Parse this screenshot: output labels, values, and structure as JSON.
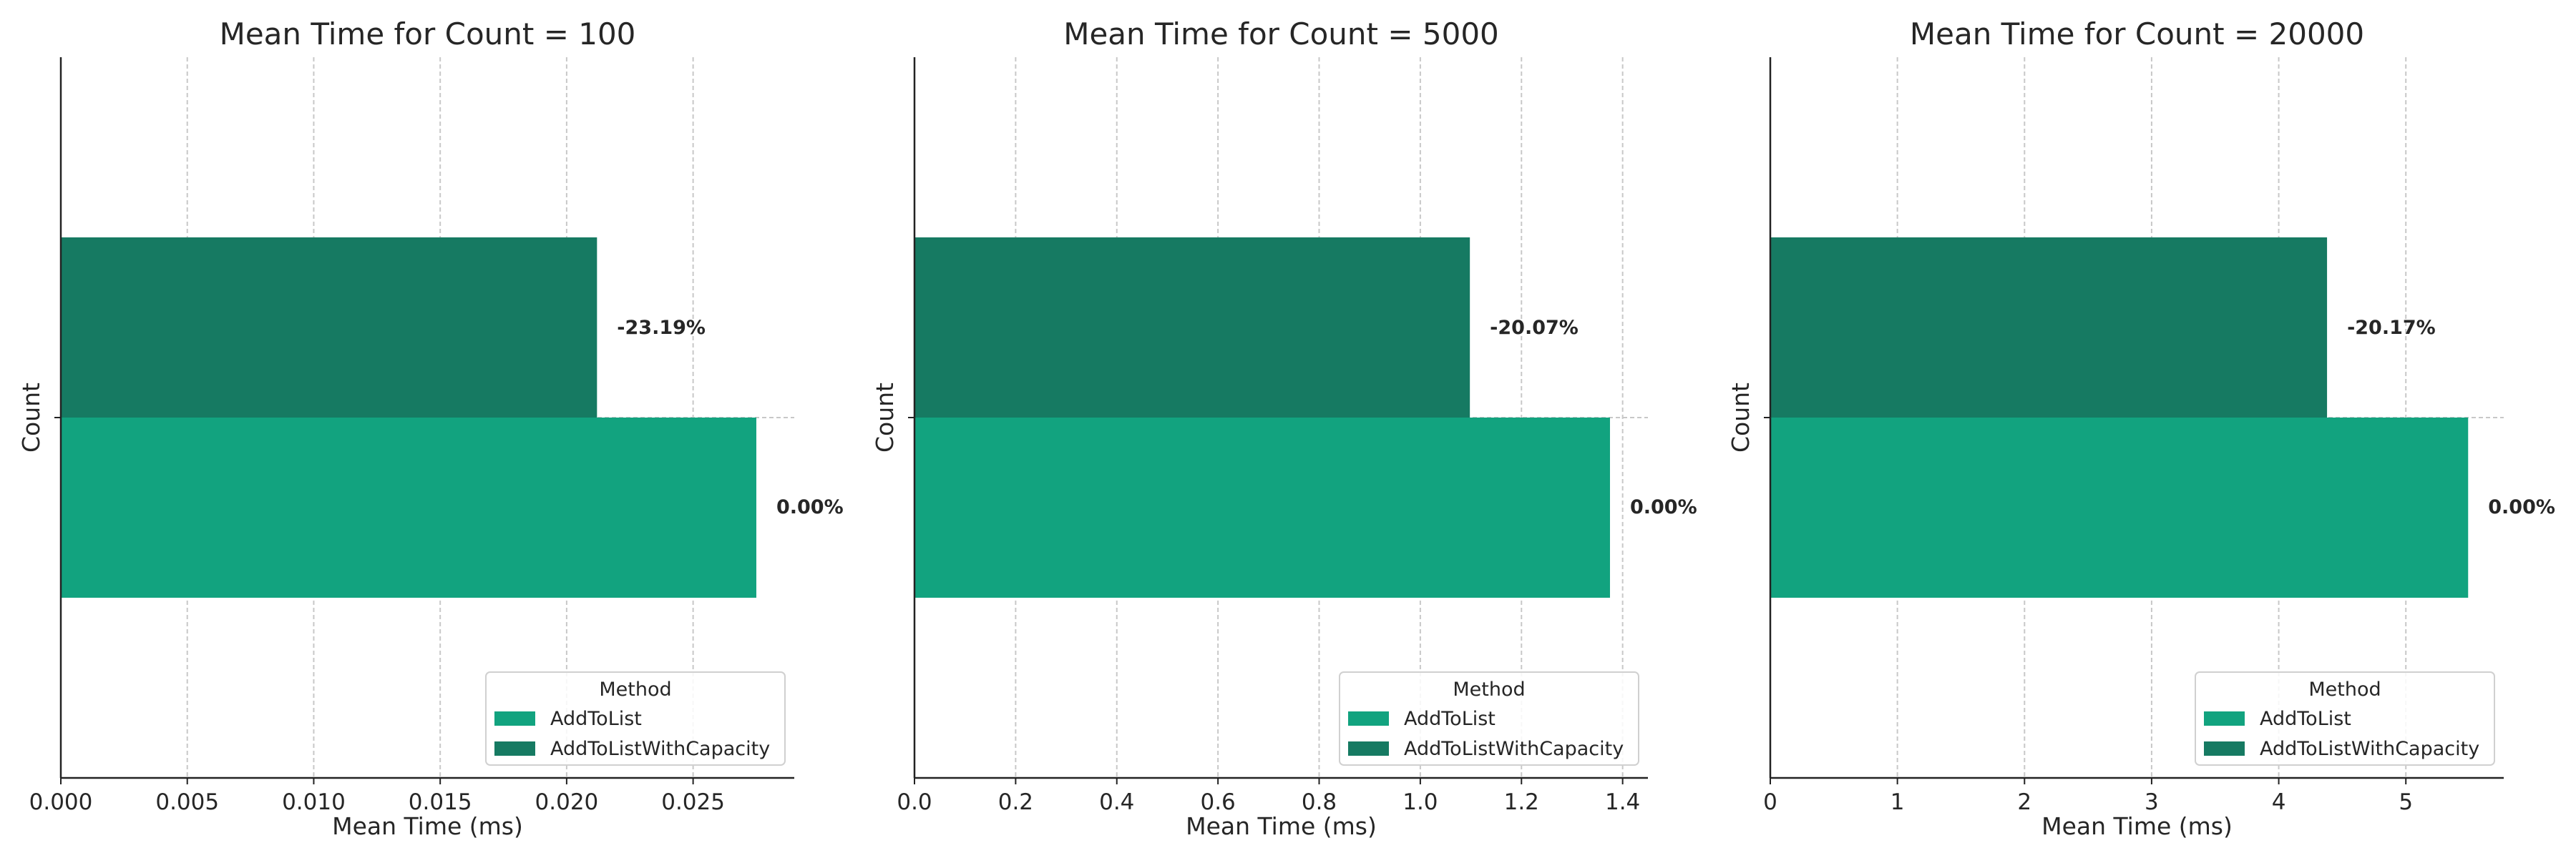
{
  "chart_data": [
    {
      "type": "bar",
      "orientation": "horizontal",
      "title": "Mean Time for Count = 100",
      "xlabel": "Mean Time (ms)",
      "ylabel": "Count",
      "xlim": [
        0,
        0.029
      ],
      "xticks": [
        "0.000",
        "0.005",
        "0.010",
        "0.015",
        "0.020",
        "0.025"
      ],
      "tick_values": [
        0,
        0.005,
        0.01,
        0.015,
        0.02,
        0.025
      ],
      "grid": true,
      "legend_title": "Method",
      "legend_position": "lower-right",
      "series": [
        {
          "name": "AddToList",
          "color": "#12a37f",
          "value": 0.0275,
          "label": "0.00%"
        },
        {
          "name": "AddToListWithCapacity",
          "color": "#167a62",
          "value": 0.0212,
          "label": "-23.19%"
        }
      ]
    },
    {
      "type": "bar",
      "orientation": "horizontal",
      "title": "Mean Time for Count = 5000",
      "xlabel": "Mean Time (ms)",
      "ylabel": "Count",
      "xlim": [
        0,
        1.45
      ],
      "xticks": [
        "0.0",
        "0.2",
        "0.4",
        "0.6",
        "0.8",
        "1.0",
        "1.2",
        "1.4"
      ],
      "tick_values": [
        0,
        0.2,
        0.4,
        0.6,
        0.8,
        1.0,
        1.2,
        1.4
      ],
      "grid": true,
      "legend_title": "Method",
      "legend_position": "lower-right",
      "series": [
        {
          "name": "AddToList",
          "color": "#12a37f",
          "value": 1.375,
          "label": "0.00%"
        },
        {
          "name": "AddToListWithCapacity",
          "color": "#167a62",
          "value": 1.098,
          "label": "-20.07%"
        }
      ]
    },
    {
      "type": "bar",
      "orientation": "horizontal",
      "title": "Mean Time for Count = 20000",
      "xlabel": "Mean Time (ms)",
      "ylabel": "Count",
      "xlim": [
        0,
        5.77
      ],
      "xticks": [
        "0",
        "1",
        "2",
        "3",
        "4",
        "5"
      ],
      "tick_values": [
        0,
        1,
        2,
        3,
        4,
        5
      ],
      "grid": true,
      "legend_title": "Method",
      "legend_position": "lower-right",
      "series": [
        {
          "name": "AddToList",
          "color": "#12a37f",
          "value": 5.49,
          "label": "0.00%"
        },
        {
          "name": "AddToListWithCapacity",
          "color": "#167a62",
          "value": 4.38,
          "label": "-20.17%"
        }
      ]
    }
  ]
}
